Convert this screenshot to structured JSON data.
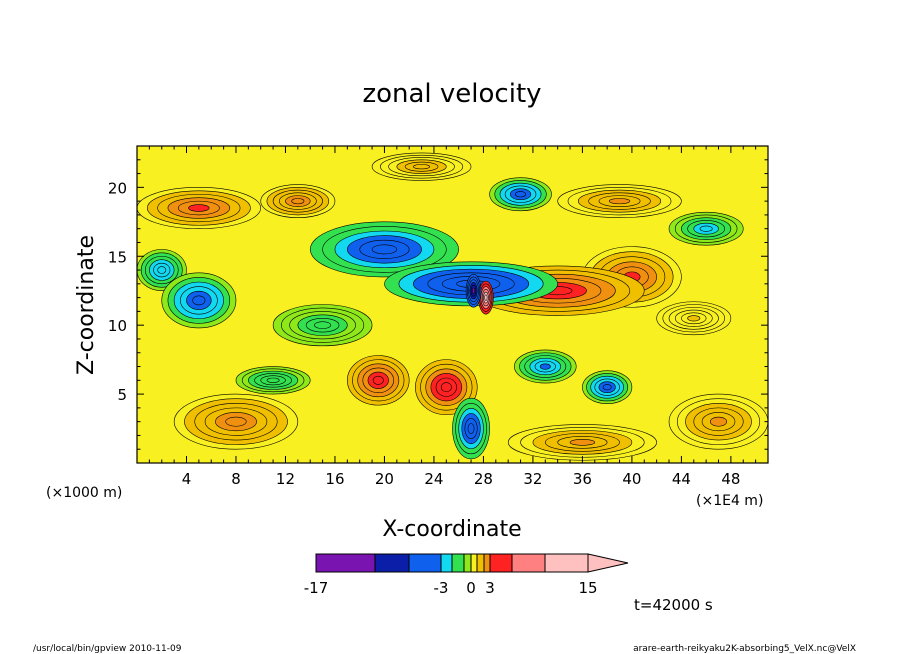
{
  "chart_data": {
    "type": "heatmap",
    "title": "zonal velocity",
    "xlabel": "X-coordinate",
    "ylabel": "Z-coordinate",
    "x_units_left": "(×1000 m)",
    "x_units_right": "(×1E4 m)",
    "xlim": [
      0,
      51
    ],
    "ylim": [
      0,
      23
    ],
    "x_ticks": [
      4,
      8,
      12,
      16,
      20,
      24,
      28,
      32,
      36,
      40,
      44,
      48
    ],
    "y_ticks": [
      5,
      10,
      15,
      20
    ],
    "colorbar": {
      "levels": [
        -17,
        -14,
        -10,
        -3,
        -2,
        -1,
        0,
        1,
        2,
        3,
        6,
        10,
        15
      ],
      "colors": [
        "#dd00aa",
        "#7a14b0",
        "#0a1ea8",
        "#1060ee",
        "#12d8f0",
        "#32e050",
        "#8ee81a",
        "#f8f020",
        "#f0c000",
        "#f09010",
        "#ff2222",
        "#ff8080",
        "#ffc0c0"
      ],
      "labels": [
        "-17",
        "-3",
        "0",
        "3",
        "15"
      ]
    },
    "annotation": "t=42000 s",
    "blobs": [
      {
        "x": 27,
        "y": 13,
        "rx": 7,
        "ry": 1.6,
        "v": -6
      },
      {
        "x": 20,
        "y": 15.5,
        "rx": 6,
        "ry": 2,
        "v": -5
      },
      {
        "x": 5,
        "y": 11.8,
        "rx": 3,
        "ry": 2,
        "v": -4
      },
      {
        "x": 2,
        "y": 14,
        "rx": 2,
        "ry": 1.5,
        "v": -3
      },
      {
        "x": 34,
        "y": 12.5,
        "rx": 7,
        "ry": 1.8,
        "v": 4
      },
      {
        "x": 40,
        "y": 13.5,
        "rx": 4,
        "ry": 2.2,
        "v": 3.5
      },
      {
        "x": 5,
        "y": 18.5,
        "rx": 5,
        "ry": 1.5,
        "v": 3
      },
      {
        "x": 13,
        "y": 19,
        "rx": 3,
        "ry": 1.2,
        "v": 2.5
      },
      {
        "x": 39,
        "y": 19,
        "rx": 5,
        "ry": 1.2,
        "v": 2
      },
      {
        "x": 19.5,
        "y": 6,
        "rx": 2.5,
        "ry": 1.8,
        "v": 4
      },
      {
        "x": 25,
        "y": 5.5,
        "rx": 2.5,
        "ry": 2,
        "v": 4.5
      },
      {
        "x": 33,
        "y": 7,
        "rx": 2.5,
        "ry": 1.2,
        "v": -3.5
      },
      {
        "x": 38,
        "y": 5.5,
        "rx": 2,
        "ry": 1.2,
        "v": -4
      },
      {
        "x": 11,
        "y": 6,
        "rx": 3,
        "ry": 1,
        "v": -2
      },
      {
        "x": 31,
        "y": 19.5,
        "rx": 2.5,
        "ry": 1.2,
        "v": -4
      },
      {
        "x": 46,
        "y": 17,
        "rx": 3,
        "ry": 1.2,
        "v": -2.5
      },
      {
        "x": 27.2,
        "y": 12.5,
        "rx": 0.6,
        "ry": 1.2,
        "v": -15
      },
      {
        "x": 28.2,
        "y": 12,
        "rx": 0.6,
        "ry": 1.2,
        "v": 12
      },
      {
        "x": 27,
        "y": 2.5,
        "rx": 1.5,
        "ry": 2.2,
        "v": -5
      },
      {
        "x": 47,
        "y": 3,
        "rx": 4,
        "ry": 2,
        "v": 2
      },
      {
        "x": 8,
        "y": 3,
        "rx": 5,
        "ry": 2,
        "v": 2.5
      },
      {
        "x": 36,
        "y": 1.5,
        "rx": 6,
        "ry": 1.3,
        "v": 2
      },
      {
        "x": 15,
        "y": 10,
        "rx": 4,
        "ry": 1.5,
        "v": -1.5
      },
      {
        "x": 45,
        "y": 10.5,
        "rx": 3,
        "ry": 1.2,
        "v": 1
      },
      {
        "x": 23,
        "y": 21.5,
        "rx": 4,
        "ry": 1,
        "v": 1.5
      }
    ]
  },
  "footer": {
    "left": "/usr/local/bin/gpview  2010-11-09",
    "right": "arare-earth-reikyaku2K-absorbing5_VelX.nc@VelX"
  }
}
